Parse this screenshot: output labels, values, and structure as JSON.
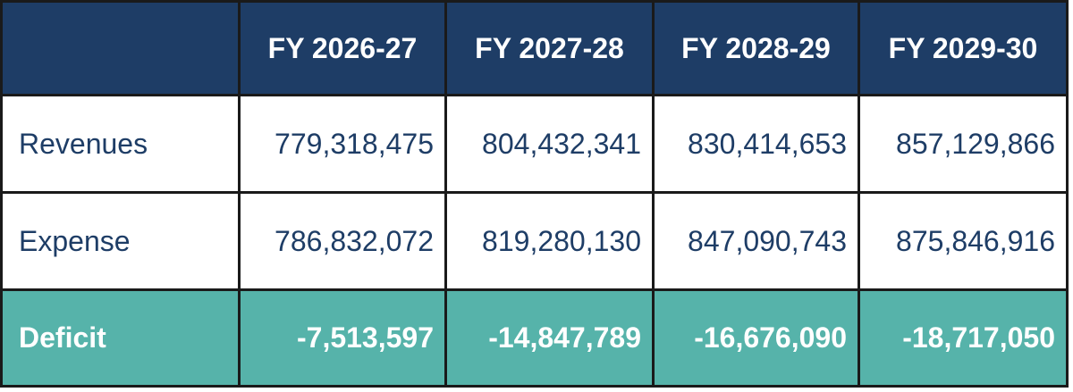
{
  "chart_data": {
    "type": "table",
    "columns": [
      "",
      "FY 2026-27",
      "FY 2027-28",
      "FY 2028-29",
      "FY 2029-30"
    ],
    "rows": [
      {
        "label": "Revenues",
        "values": [
          "779,318,475",
          "804,432,341",
          "830,414,653",
          "857,129,866"
        ]
      },
      {
        "label": "Expense",
        "values": [
          "786,832,072",
          "819,280,130",
          "847,090,743",
          "875,846,916"
        ]
      },
      {
        "label": "Deficit",
        "values": [
          "-7,513,597",
          "-14,847,789",
          "-16,676,090",
          "-18,717,050"
        ]
      }
    ]
  },
  "colors": {
    "header_background": "#1e3d66",
    "header_text": "#ffffff",
    "body_text": "#1e3d66",
    "total_background": "#56b3aa",
    "total_text": "#ffffff",
    "border": "#1a1a1a"
  }
}
